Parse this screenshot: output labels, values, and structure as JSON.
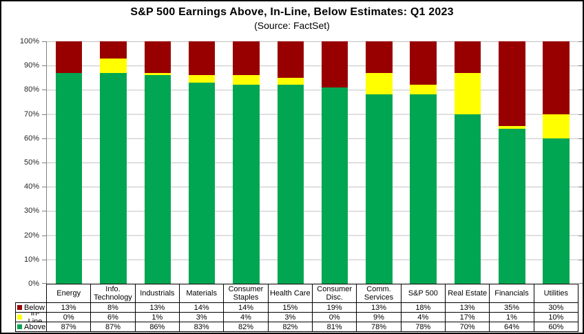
{
  "title": "S&P 500 Earnings Above, In-Line, Below Estimates: Q1 2023",
  "subtitle": "(Source: FactSet)",
  "colors": {
    "below": "#980000",
    "inline": "#FFFF00",
    "above": "#00A651",
    "gridline": "#C0C0C0",
    "axis": "#7F7F7F"
  },
  "chart_data": {
    "type": "bar",
    "stacked": true,
    "title": "S&P 500 Earnings Above, In-Line, Below Estimates: Q1 2023",
    "subtitle": "(Source: FactSet)",
    "categories": [
      "Energy",
      "Info. Technology",
      "Industrials",
      "Materials",
      "Consumer Staples",
      "Health Care",
      "Consumer Disc.",
      "Comm. Services",
      "S&P 500",
      "Real Estate",
      "Financials",
      "Utilities"
    ],
    "series": [
      {
        "name": "Below",
        "color": "#980000",
        "values": [
          13,
          8,
          13,
          14,
          14,
          15,
          19,
          13,
          18,
          13,
          35,
          30
        ]
      },
      {
        "name": "In-Line",
        "color": "#FFFF00",
        "values": [
          0,
          6,
          1,
          3,
          4,
          3,
          0,
          9,
          4,
          17,
          1,
          10
        ]
      },
      {
        "name": "Above",
        "color": "#00A651",
        "values": [
          87,
          87,
          86,
          83,
          82,
          82,
          81,
          78,
          78,
          70,
          64,
          60
        ]
      }
    ],
    "value_suffix": "%",
    "ylim": [
      0,
      100
    ],
    "y_ticks": [
      "100%",
      "90%",
      "80%",
      "70%",
      "60%",
      "50%",
      "40%",
      "30%",
      "20%",
      "10%",
      "0%"
    ],
    "grid": "horizontal",
    "legend_position": "table-left"
  }
}
